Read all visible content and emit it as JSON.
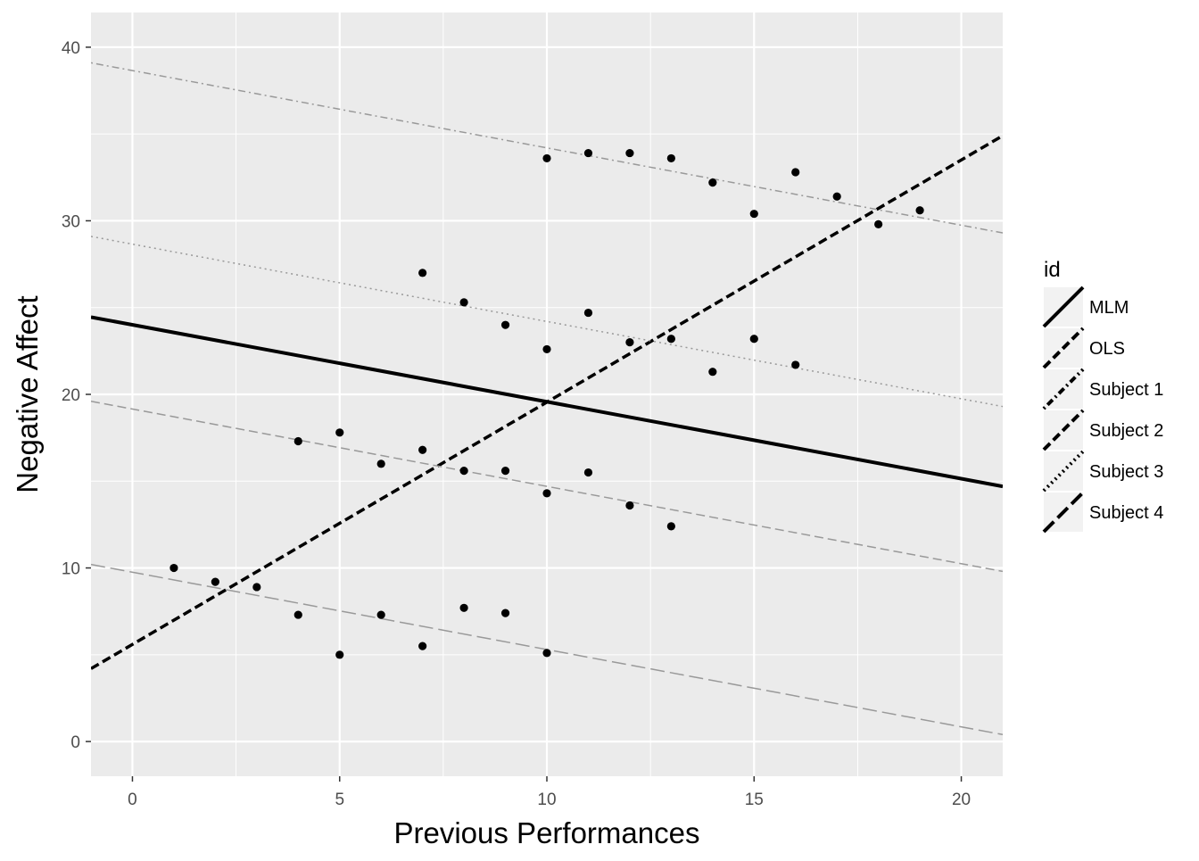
{
  "chart_data": {
    "type": "scatter",
    "title": "",
    "xlabel": "Previous Performances",
    "ylabel": "Negative Affect",
    "xlim": [
      -1,
      21
    ],
    "ylim": [
      -2,
      42
    ],
    "x_ticks": [
      0,
      5,
      10,
      15,
      20
    ],
    "y_ticks": [
      0,
      10,
      20,
      30,
      40
    ],
    "x_tick_labels": [
      "0",
      "5",
      "10",
      "15",
      "20"
    ],
    "y_tick_labels": [
      "0",
      "10",
      "20",
      "30",
      "40"
    ],
    "grid": true,
    "legend": {
      "title": "id",
      "position": "right"
    },
    "colors": {
      "panel": "#ebebeb",
      "grid": "#ffffff",
      "points": "#000000",
      "subject_lines": "#999999"
    },
    "points": [
      {
        "x": 1,
        "y": 10.0
      },
      {
        "x": 2,
        "y": 9.2
      },
      {
        "x": 3,
        "y": 8.9
      },
      {
        "x": 4,
        "y": 7.3
      },
      {
        "x": 5,
        "y": 5.0
      },
      {
        "x": 6,
        "y": 7.3
      },
      {
        "x": 7,
        "y": 5.5
      },
      {
        "x": 8,
        "y": 7.7
      },
      {
        "x": 9,
        "y": 7.4
      },
      {
        "x": 10,
        "y": 5.1
      },
      {
        "x": 4,
        "y": 17.3
      },
      {
        "x": 5,
        "y": 17.8
      },
      {
        "x": 6,
        "y": 16.0
      },
      {
        "x": 7,
        "y": 16.8
      },
      {
        "x": 8,
        "y": 15.6
      },
      {
        "x": 9,
        "y": 15.6
      },
      {
        "x": 10,
        "y": 14.3
      },
      {
        "x": 11,
        "y": 15.5
      },
      {
        "x": 12,
        "y": 13.6
      },
      {
        "x": 13,
        "y": 12.4
      },
      {
        "x": 7,
        "y": 27.0
      },
      {
        "x": 8,
        "y": 25.3
      },
      {
        "x": 9,
        "y": 24.0
      },
      {
        "x": 10,
        "y": 22.6
      },
      {
        "x": 11,
        "y": 24.7
      },
      {
        "x": 12,
        "y": 23.0
      },
      {
        "x": 13,
        "y": 23.2
      },
      {
        "x": 14,
        "y": 21.3
      },
      {
        "x": 15,
        "y": 23.2
      },
      {
        "x": 16,
        "y": 21.7
      },
      {
        "x": 10,
        "y": 33.6
      },
      {
        "x": 11,
        "y": 33.9
      },
      {
        "x": 12,
        "y": 33.9
      },
      {
        "x": 13,
        "y": 33.6
      },
      {
        "x": 14,
        "y": 32.2
      },
      {
        "x": 15,
        "y": 30.4
      },
      {
        "x": 16,
        "y": 32.8
      },
      {
        "x": 17,
        "y": 31.4
      },
      {
        "x": 18,
        "y": 29.8
      },
      {
        "x": 19,
        "y": 30.6
      }
    ],
    "series": [
      {
        "name": "MLM",
        "x": [
          -1,
          21
        ],
        "y": [
          24.45,
          14.7
        ],
        "dash": "solid",
        "color": "#000000",
        "width": 4
      },
      {
        "name": "OLS",
        "x": [
          -1,
          21
        ],
        "y": [
          4.2,
          34.9
        ],
        "dash": "dashed",
        "color": "#000000",
        "width": 3.5
      },
      {
        "name": "Subject 1",
        "x": [
          -1,
          21
        ],
        "y": [
          39.1,
          29.3
        ],
        "dash": "dotdash",
        "color": "#999999",
        "width": 1.5
      },
      {
        "name": "Subject 2",
        "x": [
          -1,
          21
        ],
        "y": [
          19.6,
          9.8
        ],
        "dash": "dashed",
        "color": "#999999",
        "width": 1.5
      },
      {
        "name": "Subject 3",
        "x": [
          -1,
          21
        ],
        "y": [
          29.1,
          19.3
        ],
        "dash": "dotted",
        "color": "#999999",
        "width": 1.5
      },
      {
        "name": "Subject 4",
        "x": [
          -1,
          21
        ],
        "y": [
          10.2,
          0.4
        ],
        "dash": "longdash",
        "color": "#999999",
        "width": 1.5
      }
    ]
  }
}
